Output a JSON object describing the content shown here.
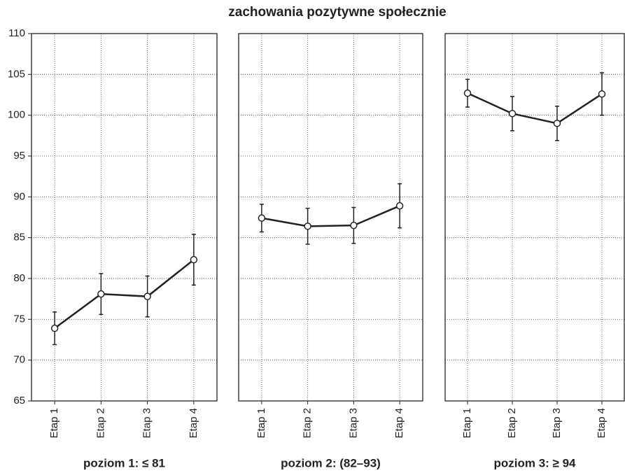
{
  "chart_data": [
    {
      "type": "line",
      "title": "zachowania pozytywne społecznie",
      "xlabel": "poziom 1: ≤ 81",
      "categories": [
        "Etap 1",
        "Etap 2",
        "Etap 3",
        "Etap 4"
      ],
      "values": [
        73.9,
        78.1,
        77.8,
        82.3
      ],
      "errors": [
        2.0,
        2.5,
        2.5,
        3.1
      ],
      "color": "#222222",
      "ylim": [
        65,
        110
      ],
      "yticks": [
        65,
        70,
        75,
        80,
        85,
        90,
        95,
        100,
        105,
        110
      ],
      "grid": true
    },
    {
      "type": "line",
      "xlabel": "poziom 2: (82–93)",
      "categories": [
        "Etap 1",
        "Etap 2",
        "Etap 3",
        "Etap 4"
      ],
      "values": [
        87.4,
        86.4,
        86.5,
        88.9
      ],
      "errors": [
        1.7,
        2.2,
        2.2,
        2.7
      ],
      "color": "#222222",
      "ylim": [
        65,
        110
      ],
      "yticks": [
        65,
        70,
        75,
        80,
        85,
        90,
        95,
        100,
        105,
        110
      ],
      "grid": true
    },
    {
      "type": "line",
      "xlabel": "poziom 3: ≥ 94",
      "categories": [
        "Etap 1",
        "Etap 2",
        "Etap 3",
        "Etap 4"
      ],
      "values": [
        102.7,
        100.2,
        99.0,
        102.6
      ],
      "errors": [
        1.7,
        2.1,
        2.1,
        2.6
      ],
      "color": "#222222",
      "ylim": [
        65,
        110
      ],
      "yticks": [
        65,
        70,
        75,
        80,
        85,
        90,
        95,
        100,
        105,
        110
      ],
      "grid": true
    }
  ]
}
